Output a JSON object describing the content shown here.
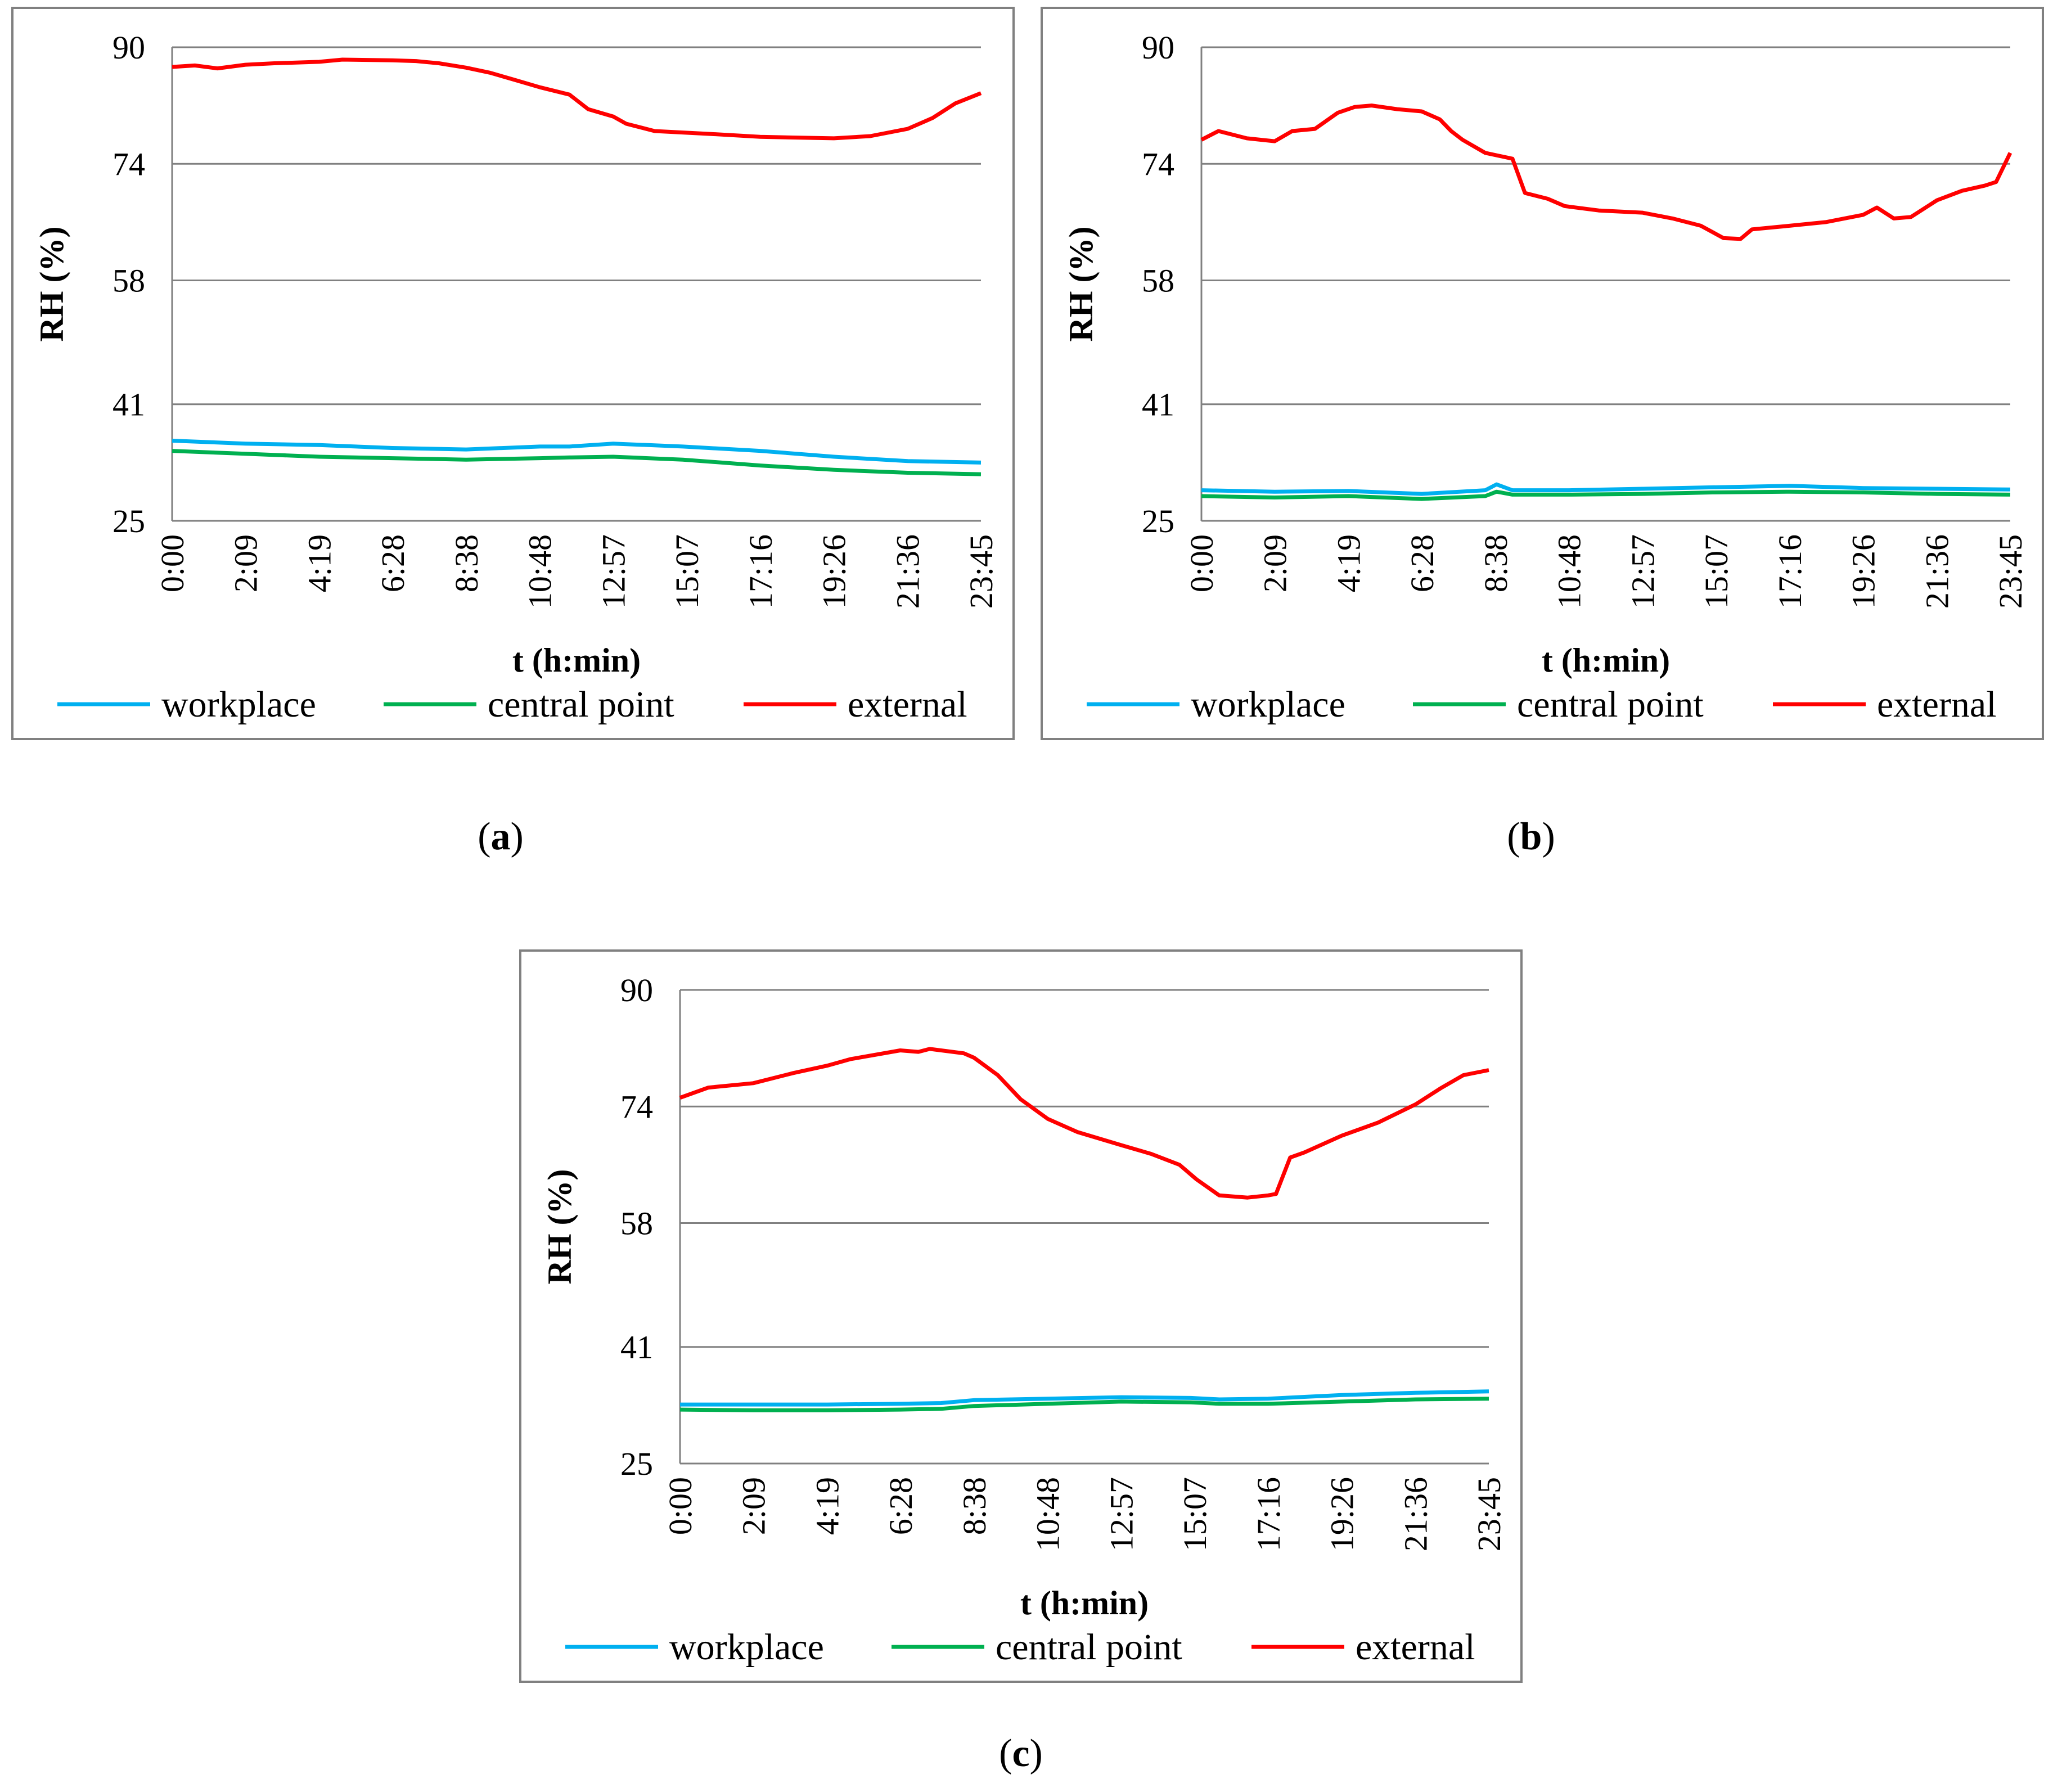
{
  "colors": {
    "workplace": "#00B0F0",
    "central": "#00B050",
    "external": "#FF0000",
    "grid": "#808080",
    "frame": "#808080"
  },
  "chart_data": [
    {
      "type": "line",
      "panel": "(a)",
      "caption_letter": "a",
      "ylabel": "RH (%)",
      "xlabel": "t (h:min)",
      "yticks": [
        "90",
        "74",
        "58",
        "41",
        "25"
      ],
      "ytick_values": [
        90,
        74,
        58,
        41,
        25
      ],
      "ylim": [
        25,
        90
      ],
      "xticks": [
        "0:00",
        "2:09",
        "4:19",
        "6:28",
        "8:38",
        "10:48",
        "12:57",
        "15:07",
        "17:16",
        "19:26",
        "21:36",
        "23:45"
      ],
      "xlim_minutes": [
        0,
        1425
      ],
      "legend": [
        "workplace",
        "central point",
        "external"
      ],
      "series": [
        {
          "name": "workplace",
          "key": "workplace",
          "points": [
            [
              0,
              36
            ],
            [
              129,
              35.6
            ],
            [
              259,
              35.4
            ],
            [
              388,
              35
            ],
            [
              518,
              34.8
            ],
            [
              648,
              35.2
            ],
            [
              700,
              35.2
            ],
            [
              777,
              35.6
            ],
            [
              900,
              35.2
            ],
            [
              1036,
              34.6
            ],
            [
              1166,
              33.8
            ],
            [
              1296,
              33.2
            ],
            [
              1425,
              33
            ]
          ]
        },
        {
          "name": "central point",
          "key": "central",
          "points": [
            [
              0,
              34.6
            ],
            [
              129,
              34.2
            ],
            [
              259,
              33.8
            ],
            [
              388,
              33.6
            ],
            [
              518,
              33.4
            ],
            [
              648,
              33.6
            ],
            [
              700,
              33.7
            ],
            [
              777,
              33.8
            ],
            [
              900,
              33.4
            ],
            [
              1036,
              32.6
            ],
            [
              1166,
              32
            ],
            [
              1296,
              31.6
            ],
            [
              1425,
              31.4
            ]
          ]
        },
        {
          "name": "external",
          "key": "external",
          "points": [
            [
              0,
              87.3
            ],
            [
              40,
              87.5
            ],
            [
              80,
              87.1
            ],
            [
              129,
              87.6
            ],
            [
              180,
              87.8
            ],
            [
              259,
              88
            ],
            [
              300,
              88.3
            ],
            [
              388,
              88.2
            ],
            [
              430,
              88.1
            ],
            [
              470,
              87.8
            ],
            [
              518,
              87.2
            ],
            [
              560,
              86.5
            ],
            [
              600,
              85.6
            ],
            [
              648,
              84.5
            ],
            [
              700,
              83.5
            ],
            [
              733,
              81.5
            ],
            [
              777,
              80.5
            ],
            [
              800,
              79.5
            ],
            [
              850,
              78.5
            ],
            [
              900,
              78.3
            ],
            [
              950,
              78.1
            ],
            [
              1036,
              77.7
            ],
            [
              1100,
              77.6
            ],
            [
              1166,
              77.5
            ],
            [
              1230,
              77.8
            ],
            [
              1296,
              78.8
            ],
            [
              1340,
              80.3
            ],
            [
              1380,
              82.3
            ],
            [
              1425,
              83.7
            ]
          ]
        }
      ]
    },
    {
      "type": "line",
      "panel": "(b)",
      "caption_letter": "b",
      "ylabel": "RH (%)",
      "xlabel": "t (h:min)",
      "yticks": [
        "90",
        "74",
        "58",
        "41",
        "25"
      ],
      "ytick_values": [
        90,
        74,
        58,
        41,
        25
      ],
      "ylim": [
        25,
        90
      ],
      "xticks": [
        "0:00",
        "2:09",
        "4:19",
        "6:28",
        "8:38",
        "10:48",
        "12:57",
        "15:07",
        "17:16",
        "19:26",
        "21:36",
        "23:45"
      ],
      "xlim_minutes": [
        0,
        1425
      ],
      "legend": [
        "workplace",
        "central point",
        "external"
      ],
      "series": [
        {
          "name": "workplace",
          "key": "workplace",
          "points": [
            [
              0,
              29.2
            ],
            [
              129,
              29
            ],
            [
              259,
              29.1
            ],
            [
              388,
              28.7
            ],
            [
              500,
              29.2
            ],
            [
              520,
              30
            ],
            [
              548,
              29.2
            ],
            [
              648,
              29.2
            ],
            [
              777,
              29.4
            ],
            [
              900,
              29.6
            ],
            [
              1036,
              29.8
            ],
            [
              1166,
              29.5
            ],
            [
              1296,
              29.4
            ],
            [
              1425,
              29.3
            ]
          ]
        },
        {
          "name": "central point",
          "key": "central",
          "points": [
            [
              0,
              28.4
            ],
            [
              129,
              28.2
            ],
            [
              259,
              28.4
            ],
            [
              388,
              28
            ],
            [
              500,
              28.4
            ],
            [
              520,
              29
            ],
            [
              548,
              28.6
            ],
            [
              648,
              28.6
            ],
            [
              777,
              28.7
            ],
            [
              900,
              28.9
            ],
            [
              1036,
              29
            ],
            [
              1166,
              28.9
            ],
            [
              1296,
              28.7
            ],
            [
              1425,
              28.6
            ]
          ]
        },
        {
          "name": "external",
          "key": "external",
          "points": [
            [
              0,
              77.3
            ],
            [
              30,
              78.5
            ],
            [
              80,
              77.5
            ],
            [
              129,
              77.1
            ],
            [
              160,
              78.5
            ],
            [
              200,
              78.8
            ],
            [
              240,
              81
            ],
            [
              270,
              81.8
            ],
            [
              300,
              82
            ],
            [
              345,
              81.5
            ],
            [
              388,
              81.2
            ],
            [
              420,
              80.1
            ],
            [
              440,
              78.5
            ],
            [
              460,
              77.3
            ],
            [
              500,
              75.5
            ],
            [
              548,
              74.7
            ],
            [
              570,
              70
            ],
            [
              610,
              69.2
            ],
            [
              640,
              68.2
            ],
            [
              700,
              67.6
            ],
            [
              777,
              67.3
            ],
            [
              830,
              66.5
            ],
            [
              880,
              65.5
            ],
            [
              920,
              63.8
            ],
            [
              950,
              63.7
            ],
            [
              970,
              65
            ],
            [
              1036,
              65.5
            ],
            [
              1100,
              66
            ],
            [
              1166,
              67
            ],
            [
              1190,
              68
            ],
            [
              1220,
              66.5
            ],
            [
              1250,
              66.7
            ],
            [
              1296,
              69
            ],
            [
              1340,
              70.3
            ],
            [
              1380,
              71
            ],
            [
              1400,
              71.5
            ],
            [
              1425,
              75.5
            ]
          ]
        }
      ]
    },
    {
      "type": "line",
      "panel": "(c)",
      "caption_letter": "c",
      "ylabel": "RH (%)",
      "xlabel": "t (h:min)",
      "yticks": [
        "90",
        "74",
        "58",
        "41",
        "25"
      ],
      "ytick_values": [
        90,
        74,
        58,
        41,
        25
      ],
      "ylim": [
        25,
        90
      ],
      "xticks": [
        "0:00",
        "2:09",
        "4:19",
        "6:28",
        "8:38",
        "10:48",
        "12:57",
        "15:07",
        "17:16",
        "19:26",
        "21:36",
        "23:45"
      ],
      "xlim_minutes": [
        0,
        1425
      ],
      "legend": [
        "workplace",
        "central point",
        "external"
      ],
      "series": [
        {
          "name": "workplace",
          "key": "workplace",
          "points": [
            [
              0,
              33.1
            ],
            [
              129,
              33.1
            ],
            [
              259,
              33.1
            ],
            [
              388,
              33.2
            ],
            [
              460,
              33.3
            ],
            [
              518,
              33.7
            ],
            [
              648,
              33.9
            ],
            [
              777,
              34.1
            ],
            [
              900,
              34
            ],
            [
              950,
              33.8
            ],
            [
              1036,
              33.9
            ],
            [
              1166,
              34.4
            ],
            [
              1296,
              34.7
            ],
            [
              1425,
              34.9
            ]
          ]
        },
        {
          "name": "central point",
          "key": "central",
          "points": [
            [
              0,
              32.4
            ],
            [
              129,
              32.3
            ],
            [
              259,
              32.3
            ],
            [
              388,
              32.4
            ],
            [
              460,
              32.5
            ],
            [
              518,
              32.9
            ],
            [
              648,
              33.2
            ],
            [
              777,
              33.5
            ],
            [
              900,
              33.4
            ],
            [
              950,
              33.2
            ],
            [
              1036,
              33.2
            ],
            [
              1166,
              33.5
            ],
            [
              1296,
              33.8
            ],
            [
              1425,
              33.9
            ]
          ]
        },
        {
          "name": "external",
          "key": "external",
          "points": [
            [
              0,
              75.2
            ],
            [
              50,
              76.6
            ],
            [
              129,
              77.2
            ],
            [
              200,
              78.6
            ],
            [
              259,
              79.6
            ],
            [
              300,
              80.5
            ],
            [
              388,
              81.7
            ],
            [
              420,
              81.5
            ],
            [
              440,
              81.9
            ],
            [
              500,
              81.3
            ],
            [
              518,
              80.7
            ],
            [
              560,
              78.3
            ],
            [
              600,
              75
            ],
            [
              648,
              72.3
            ],
            [
              700,
              70.5
            ],
            [
              777,
              68.7
            ],
            [
              830,
              67.5
            ],
            [
              880,
              66
            ],
            [
              910,
              64
            ],
            [
              950,
              61.8
            ],
            [
              1000,
              61.5
            ],
            [
              1036,
              61.8
            ],
            [
              1050,
              62
            ],
            [
              1075,
              67
            ],
            [
              1100,
              67.7
            ],
            [
              1166,
              70
            ],
            [
              1230,
              71.8
            ],
            [
              1296,
              74.3
            ],
            [
              1340,
              76.5
            ],
            [
              1380,
              78.3
            ],
            [
              1425,
              79
            ]
          ]
        }
      ]
    }
  ]
}
